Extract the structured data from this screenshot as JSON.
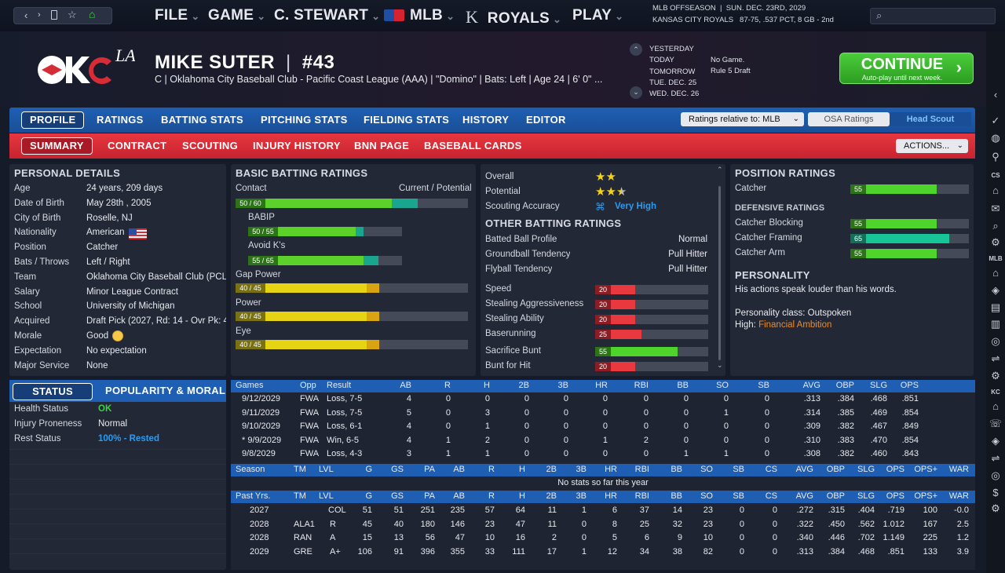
{
  "nav": {
    "back_icon": "chevron-left-icon",
    "fwd_icon": "chevron-right-icon",
    "bookmark_icon": "bookmark-icon",
    "star_icon": "star-icon",
    "home_icon": "home-icon"
  },
  "menu": [
    {
      "label": "FILE"
    },
    {
      "label": "GAME"
    },
    {
      "label": "C. STEWART"
    },
    {
      "label": "MLB"
    },
    {
      "label": "ROYALS"
    },
    {
      "label": "PLAY"
    }
  ],
  "status_bar": {
    "line1": "MLB OFFSEASON  |  SUN. DEC. 23RD, 2029",
    "line2": "KANSAS CITY ROYALS   87-75, .537 PCT, 8 GB - 2nd"
  },
  "player": {
    "name": "MIKE SUTER",
    "number": "#43",
    "sub": "C | Oklahoma City Baseball Club - Pacific Coast League (AAA)  |  \"Domino\" | Bats: Left  |  Age 24  |  6' 0\" ..."
  },
  "schedule": [
    {
      "day": "YESTERDAY",
      "info": ""
    },
    {
      "day": "TODAY",
      "info": "No Game."
    },
    {
      "day": "TOMORROW",
      "info": "Rule 5 Draft"
    },
    {
      "day": "TUE. DEC. 25",
      "info": ""
    },
    {
      "day": "WED. DEC. 26",
      "info": ""
    }
  ],
  "continue": {
    "label": "CONTINUE",
    "sub": "Auto-play until next week."
  },
  "tabs1": [
    "PROFILE",
    "RATINGS",
    "BATTING STATS",
    "PITCHING STATS",
    "FIELDING STATS",
    "HISTORY",
    "EDITOR"
  ],
  "ratings_select": "Ratings relative to: MLB",
  "osa_label": "OSA Ratings",
  "scout_label": "Head Scout",
  "tabs2": [
    "SUMMARY",
    "CONTRACT",
    "SCOUTING",
    "INJURY HISTORY",
    "BNN PAGE",
    "BASEBALL CARDS"
  ],
  "actions_label": "ACTIONS...",
  "personal": {
    "title": "PERSONAL DETAILS",
    "rows": [
      {
        "k": "Age",
        "v": "24 years, 209 days"
      },
      {
        "k": "Date of Birth",
        "v": "May 28th , 2005"
      },
      {
        "k": "City of Birth",
        "v": "Roselle, NJ"
      },
      {
        "k": "Nationality",
        "v": "American"
      },
      {
        "k": "Position",
        "v": "Catcher"
      },
      {
        "k": "Bats / Throws",
        "v": "Left / Right"
      },
      {
        "k": "Team",
        "v": "Oklahoma City Baseball Club (PCL,"
      },
      {
        "k": "Salary",
        "v": "Minor League Contract"
      },
      {
        "k": "School",
        "v": "University of Michigan"
      },
      {
        "k": "Acquired",
        "v": "Draft Pick (2027, Rd: 14 - Ovr Pk: 4"
      },
      {
        "k": "Morale",
        "v": "Good"
      },
      {
        "k": "Expectation",
        "v": "No expectation"
      },
      {
        "k": "Major Service",
        "v": "None"
      }
    ]
  },
  "status_tabs": {
    "status": "STATUS",
    "popularity": "POPULARITY & MORALE"
  },
  "status": [
    {
      "k": "Health Status",
      "v": "OK",
      "color": "#3fd04a"
    },
    {
      "k": "Injury Proneness",
      "v": "Normal",
      "color": "#e7e9ee"
    },
    {
      "k": "Rest Status",
      "v": "100% - Rested",
      "color": "#2b9bf0"
    }
  ],
  "batting": {
    "title": "BASIC BATTING RATINGS",
    "col1": "Contact",
    "col2": "Current / Potential",
    "rows": [
      {
        "label": "",
        "value": "50 / 60",
        "cur": 50,
        "pot": 60,
        "color": "#5cd12a",
        "indent": 0
      },
      {
        "label": "BABIP",
        "value": "50 / 55",
        "cur": 50,
        "pot": 55,
        "color": "#5cd12a",
        "indent": 1
      },
      {
        "label": "Avoid K's",
        "value": "55 / 65",
        "cur": 55,
        "pot": 65,
        "color": "#5cd12a",
        "indent": 1
      },
      {
        "label": "Gap Power",
        "value": "40 / 45",
        "cur": 40,
        "pot": 45,
        "color": "#e6d313",
        "indent": 0
      },
      {
        "label": "Power",
        "value": "40 / 45",
        "cur": 40,
        "pot": 45,
        "color": "#e6d313",
        "indent": 0
      },
      {
        "label": "Eye",
        "value": "40 / 45",
        "cur": 40,
        "pot": 45,
        "color": "#e6d313",
        "indent": 0
      }
    ]
  },
  "summary": {
    "overall_label": "Overall",
    "overall_stars": 2,
    "potential_label": "Potential",
    "potential_stars": 2.5,
    "accuracy_label": "Scouting Accuracy",
    "accuracy": "Very High",
    "other_title": "OTHER BATTING RATINGS",
    "other": [
      {
        "k": "Batted Ball Profile",
        "v": "Normal"
      },
      {
        "k": "Groundball Tendency",
        "v": "Pull Hitter"
      },
      {
        "k": "Flyball Tendency",
        "v": "Pull Hitter"
      }
    ],
    "run": [
      {
        "k": "Speed",
        "v": 20,
        "color": "#e8393f"
      },
      {
        "k": "Stealing Aggressiveness",
        "v": 20,
        "color": "#e8393f"
      },
      {
        "k": "Stealing Ability",
        "v": 20,
        "color": "#e8393f"
      },
      {
        "k": "Baserunning",
        "v": 25,
        "color": "#e8393f"
      },
      {
        "k": "Sacrifice Bunt",
        "v": 55,
        "color": "#4ed42a"
      },
      {
        "k": "Bunt for Hit",
        "v": 20,
        "color": "#e8393f"
      }
    ]
  },
  "position": {
    "title": "POSITION RATINGS",
    "rows": [
      {
        "k": "Catcher",
        "v": 55,
        "color": "#4ed42a"
      }
    ],
    "def_title": "DEFENSIVE RATINGS",
    "def": [
      {
        "k": "Catcher Blocking",
        "v": 55,
        "color": "#4ed42a"
      },
      {
        "k": "Catcher Framing",
        "v": 65,
        "color": "#17c596"
      },
      {
        "k": "Catcher Arm",
        "v": 55,
        "color": "#4ed42a"
      }
    ],
    "pers_title": "PERSONALITY",
    "pers_text": "His actions speak louder than his words.",
    "pers_class": "Personality class: Outspoken",
    "high_label": "High:",
    "high_value": "Financial Ambition"
  },
  "games": {
    "headers": [
      "Games",
      "Opp",
      "Result",
      "AB",
      "R",
      "H",
      "2B",
      "3B",
      "HR",
      "RBI",
      "BB",
      "SO",
      "SB",
      "AVG",
      "OBP",
      "SLG",
      "OPS"
    ],
    "rows": [
      [
        "9/12/2029",
        "FWA",
        "Loss, 7-5",
        "4",
        "0",
        "0",
        "0",
        "0",
        "0",
        "0",
        "0",
        "0",
        "0",
        ".313",
        ".384",
        ".468",
        ".851"
      ],
      [
        "9/11/2029",
        "FWA",
        "Loss, 7-5",
        "5",
        "0",
        "3",
        "0",
        "0",
        "0",
        "0",
        "0",
        "1",
        "0",
        ".314",
        ".385",
        ".469",
        ".854"
      ],
      [
        "9/10/2029",
        "FWA",
        "Loss, 6-1",
        "4",
        "0",
        "1",
        "0",
        "0",
        "0",
        "0",
        "0",
        "0",
        "0",
        ".309",
        ".382",
        ".467",
        ".849"
      ],
      [
        "* 9/9/2029",
        "FWA",
        "Win, 6-5",
        "4",
        "1",
        "2",
        "0",
        "0",
        "1",
        "2",
        "0",
        "0",
        "0",
        ".310",
        ".383",
        ".470",
        ".854"
      ],
      [
        "9/8/2029",
        "FWA",
        "Loss, 4-3",
        "3",
        "1",
        "1",
        "0",
        "0",
        "0",
        "0",
        "1",
        "1",
        "0",
        ".308",
        ".382",
        ".460",
        ".843"
      ]
    ]
  },
  "season": {
    "headers": [
      "Season",
      "TM",
      "LVL",
      "G",
      "GS",
      "PA",
      "AB",
      "R",
      "H",
      "2B",
      "3B",
      "HR",
      "RBI",
      "BB",
      "SO",
      "SB",
      "CS",
      "AVG",
      "OBP",
      "SLG",
      "OPS",
      "OPS+",
      "WAR"
    ],
    "empty": "No stats so far this year"
  },
  "past": {
    "headers": [
      "Past Yrs.",
      "TM",
      "LVL",
      "G",
      "GS",
      "PA",
      "AB",
      "R",
      "H",
      "2B",
      "3B",
      "HR",
      "RBI",
      "BB",
      "SO",
      "SB",
      "CS",
      "AVG",
      "OBP",
      "SLG",
      "OPS",
      "OPS+",
      "WAR"
    ],
    "rows": [
      [
        "2027",
        "",
        "COL",
        "51",
        "51",
        "251",
        "235",
        "57",
        "64",
        "11",
        "1",
        "6",
        "37",
        "14",
        "23",
        "0",
        "0",
        ".272",
        ".315",
        ".404",
        ".719",
        "100",
        "-0.0"
      ],
      [
        "2028",
        "ALA1",
        "R",
        "45",
        "40",
        "180",
        "146",
        "23",
        "47",
        "11",
        "0",
        "8",
        "25",
        "32",
        "23",
        "0",
        "0",
        ".322",
        ".450",
        ".562",
        "1.012",
        "167",
        "2.5"
      ],
      [
        "2028",
        "RAN",
        "A",
        "15",
        "13",
        "56",
        "47",
        "10",
        "16",
        "2",
        "0",
        "5",
        "6",
        "9",
        "10",
        "0",
        "0",
        ".340",
        ".446",
        ".702",
        "1.149",
        "225",
        "1.2"
      ],
      [
        "2029",
        "GRE",
        "A+",
        "106",
        "91",
        "396",
        "355",
        "33",
        "111",
        "17",
        "1",
        "12",
        "34",
        "38",
        "82",
        "0",
        "0",
        ".313",
        ".384",
        ".468",
        ".851",
        "133",
        "3.9"
      ]
    ]
  },
  "sidebar_labels": {
    "cs": "CS",
    "mlb": "MLB",
    "kc": "KC"
  },
  "colors": {
    "accent_blue": "#1e5fb3",
    "accent_red": "#d52c36",
    "continue_green": "#3cb82e",
    "high_orange": "#f08a24"
  }
}
